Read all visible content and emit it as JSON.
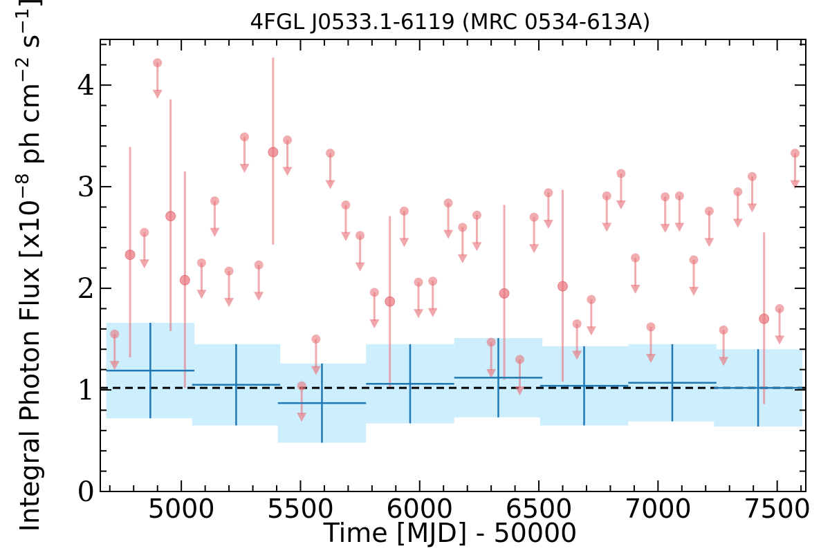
{
  "chart_data": {
    "type": "scatter",
    "title": "4FGL J0533.1-6119 (MRC 0534-613A)",
    "xlabel": "Time [MJD] - 50000",
    "ylabel_main": "Integral Photon Flux [x10",
    "ylabel_exp1": "−8",
    "ylabel_mid": " ph cm",
    "ylabel_exp2": "−2",
    "ylabel_mid2": " s",
    "ylabel_exp3": "−1",
    "ylabel_end": "]",
    "xlim": [
      4660,
      7620
    ],
    "ylim": [
      0,
      4.45
    ],
    "xticks": [
      5000,
      5500,
      6000,
      6500,
      7000,
      7500
    ],
    "yticks": [
      0,
      1,
      2,
      3,
      4
    ],
    "mean_flux": 1.02,
    "colors": {
      "points": "#e8747c",
      "band": "#cdeefc",
      "binned": "#1f77b4",
      "mean_line": "#000000"
    },
    "binned_series": [
      {
        "x": 4870,
        "xerr": 185,
        "y": 1.19,
        "yerr": 0.47
      },
      {
        "x": 5230,
        "xerr": 185,
        "y": 1.05,
        "yerr": 0.4
      },
      {
        "x": 5590,
        "xerr": 185,
        "y": 0.87,
        "yerr": 0.39
      },
      {
        "x": 5960,
        "xerr": 185,
        "y": 1.06,
        "yerr": 0.39
      },
      {
        "x": 6330,
        "xerr": 185,
        "y": 1.12,
        "yerr": 0.39
      },
      {
        "x": 6690,
        "xerr": 185,
        "y": 1.04,
        "yerr": 0.39
      },
      {
        "x": 7060,
        "xerr": 185,
        "y": 1.07,
        "yerr": 0.38
      },
      {
        "x": 7420,
        "xerr": 185,
        "y": 1.02,
        "yerr": 0.38
      }
    ],
    "detections": [
      {
        "x": 4785,
        "y": 2.33,
        "ylo": 1.32,
        "yhi": 3.39
      },
      {
        "x": 4955,
        "y": 2.71,
        "ylo": 1.58,
        "yhi": 3.86
      },
      {
        "x": 5015,
        "y": 2.08,
        "ylo": 1.02,
        "yhi": 3.15
      },
      {
        "x": 5385,
        "y": 3.34,
        "ylo": 2.43,
        "yhi": 4.27
      },
      {
        "x": 5875,
        "y": 1.87,
        "ylo": 1.03,
        "yhi": 2.71
      },
      {
        "x": 6355,
        "y": 1.95,
        "ylo": 1.1,
        "yhi": 2.82
      },
      {
        "x": 6600,
        "y": 2.02,
        "ylo": 1.08,
        "yhi": 2.97
      },
      {
        "x": 7445,
        "y": 1.7,
        "ylo": 0.86,
        "yhi": 2.55
      }
    ],
    "upper_limits": [
      {
        "x": 4720,
        "y": 1.55
      },
      {
        "x": 4845,
        "y": 2.55
      },
      {
        "x": 4900,
        "y": 4.22
      },
      {
        "x": 5085,
        "y": 2.25
      },
      {
        "x": 5140,
        "y": 2.86
      },
      {
        "x": 5200,
        "y": 2.17
      },
      {
        "x": 5265,
        "y": 3.49
      },
      {
        "x": 5325,
        "y": 2.23
      },
      {
        "x": 5445,
        "y": 3.46
      },
      {
        "x": 5505,
        "y": 1.04
      },
      {
        "x": 5565,
        "y": 1.5
      },
      {
        "x": 5625,
        "y": 3.33
      },
      {
        "x": 5690,
        "y": 2.82
      },
      {
        "x": 5750,
        "y": 2.52
      },
      {
        "x": 5810,
        "y": 1.96
      },
      {
        "x": 5935,
        "y": 2.76
      },
      {
        "x": 5995,
        "y": 2.06
      },
      {
        "x": 6055,
        "y": 2.07
      },
      {
        "x": 6120,
        "y": 2.84
      },
      {
        "x": 6180,
        "y": 2.6
      },
      {
        "x": 6240,
        "y": 2.72
      },
      {
        "x": 6300,
        "y": 1.47
      },
      {
        "x": 6420,
        "y": 1.3
      },
      {
        "x": 6480,
        "y": 2.7
      },
      {
        "x": 6540,
        "y": 2.94
      },
      {
        "x": 6660,
        "y": 1.65
      },
      {
        "x": 6720,
        "y": 1.89
      },
      {
        "x": 6785,
        "y": 2.91
      },
      {
        "x": 6845,
        "y": 3.13
      },
      {
        "x": 6905,
        "y": 2.3
      },
      {
        "x": 6970,
        "y": 1.62
      },
      {
        "x": 7030,
        "y": 2.9
      },
      {
        "x": 7090,
        "y": 2.91
      },
      {
        "x": 7150,
        "y": 2.28
      },
      {
        "x": 7215,
        "y": 2.76
      },
      {
        "x": 7275,
        "y": 1.59
      },
      {
        "x": 7335,
        "y": 2.95
      },
      {
        "x": 7395,
        "y": 3.1
      },
      {
        "x": 7510,
        "y": 1.8
      },
      {
        "x": 7575,
        "y": 3.33
      }
    ]
  }
}
